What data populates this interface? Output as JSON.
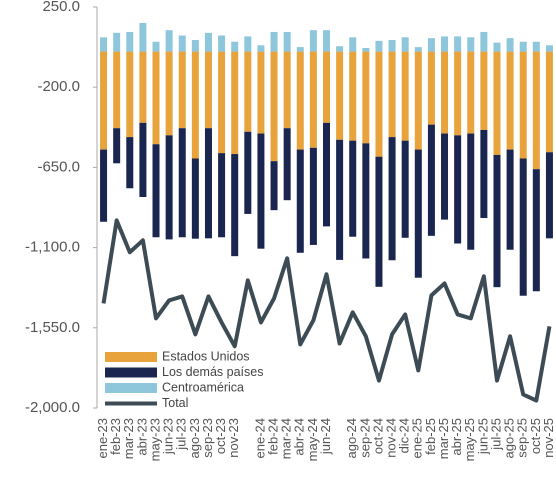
{
  "chart_data": {
    "type": "bar",
    "categories": [
      "ene-23",
      "feb-23",
      "mar-23",
      "abr-23",
      "may-23",
      "jun-23",
      "jul-23",
      "ago-23",
      "sep-23",
      "oct-23",
      "nov-23",
      null,
      "ene-24",
      "feb-24",
      "mar-24",
      "abr-24",
      "may-24",
      "jun-24",
      null,
      "ago-24",
      "sep-24",
      "oct-24",
      "nov-24",
      "dic-24",
      "ene-25",
      "feb-25",
      "mar-25",
      "abr-25",
      "may-25",
      "jun-25",
      "jul-25",
      "ago-25",
      "sep-25",
      "oct-25",
      "nov-25"
    ],
    "series": [
      {
        "name": "Estados Unidos",
        "color": "#e8a33d",
        "values": [
          -550,
          -430,
          -480,
          -400,
          -520,
          -470,
          -430,
          -600,
          -430,
          -570,
          -575,
          -450,
          -460,
          -615,
          -430,
          -550,
          -540,
          -400,
          -495,
          -500,
          -515,
          -590,
          -480,
          -500,
          -550,
          -410,
          -460,
          -470,
          -460,
          -440,
          -580,
          -550,
          -600,
          -660,
          -565
        ]
      },
      {
        "name": "Los demás países",
        "color": "#1a2550",
        "values": [
          -405,
          -197,
          -287,
          -416,
          -522,
          -584,
          -612,
          -450,
          -618,
          -472,
          -573,
          -461,
          -646,
          -275,
          -404,
          -579,
          -545,
          -581,
          -674,
          -539,
          -646,
          -730,
          -691,
          -545,
          -719,
          -624,
          -483,
          -607,
          -652,
          -494,
          -742,
          -562,
          -770,
          -685,
          -483
        ]
      },
      {
        "name": "Centroamérica",
        "color": "#8ec6dc",
        "values": [
          80,
          105,
          110,
          160,
          55,
          120,
          90,
          65,
          105,
          90,
          55,
          85,
          35,
          110,
          110,
          25,
          120,
          120,
          30,
          80,
          20,
          60,
          65,
          80,
          25,
          75,
          85,
          85,
          80,
          110,
          50,
          75,
          55,
          55,
          35
        ]
      },
      {
        "name": "Total",
        "type": "line",
        "color": "#3d4b55",
        "values": [
          -1413,
          -947,
          -1126,
          -1059,
          -1497,
          -1396,
          -1374,
          -1587,
          -1374,
          -1520,
          -1654,
          -1284,
          -1520,
          -1385,
          -1160,
          -1643,
          -1508,
          -1250,
          -1638,
          -1463,
          -1598,
          -1846,
          -1587,
          -1475,
          -1789,
          -1368,
          -1301,
          -1475,
          -1497,
          -1261,
          -1846,
          -1598,
          -1924,
          -1958,
          -1542
        ]
      }
    ],
    "ylim": [
      -2000,
      250
    ],
    "yticks": [
      {
        "value": 250,
        "label": "250.0"
      },
      {
        "value": -200,
        "label": "-200.0"
      },
      {
        "value": -650,
        "label": "-650.0"
      },
      {
        "value": -1100,
        "label": "-1,100.0"
      },
      {
        "value": -1550,
        "label": "-1,550.0"
      },
      {
        "value": -2000,
        "label": "-2,000.0"
      }
    ],
    "legend": "lower-left"
  }
}
